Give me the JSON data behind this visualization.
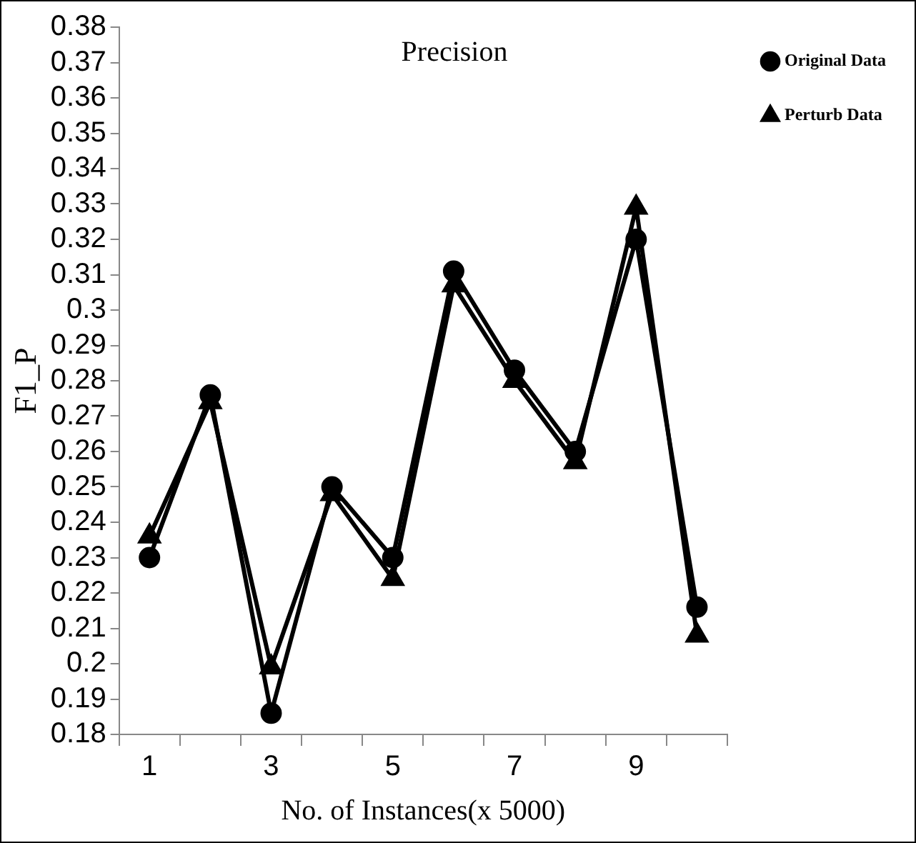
{
  "chart_data": {
    "type": "line",
    "title": "Precision",
    "xlabel": "No. of Instances(x 5000)",
    "ylabel": "F1_P",
    "categories": [
      "1",
      null,
      "3",
      null,
      "5",
      null,
      "7",
      null,
      "9",
      null
    ],
    "series": [
      {
        "name": "Original Data",
        "color": "#000000",
        "marker": "circle",
        "values": [
          0.23,
          0.276,
          0.186,
          0.25,
          0.23,
          0.311,
          0.283,
          0.26,
          0.32,
          0.216
        ]
      },
      {
        "name": "Perturb Data",
        "color": "#000000",
        "marker": "triangle",
        "values": [
          0.236,
          0.274,
          0.199,
          0.248,
          0.224,
          0.307,
          0.28,
          0.257,
          0.329,
          0.208
        ]
      }
    ],
    "ylim": [
      0.18,
      0.38
    ],
    "yticks": [
      0.18,
      0.19,
      0.2,
      0.21,
      0.22,
      0.23,
      0.24,
      0.25,
      0.26,
      0.27,
      0.28,
      0.29,
      0.3,
      0.31,
      0.32,
      0.33,
      0.34,
      0.35,
      0.36,
      0.37,
      0.38
    ],
    "grid": false,
    "legend": "right",
    "line_style": "solid"
  }
}
